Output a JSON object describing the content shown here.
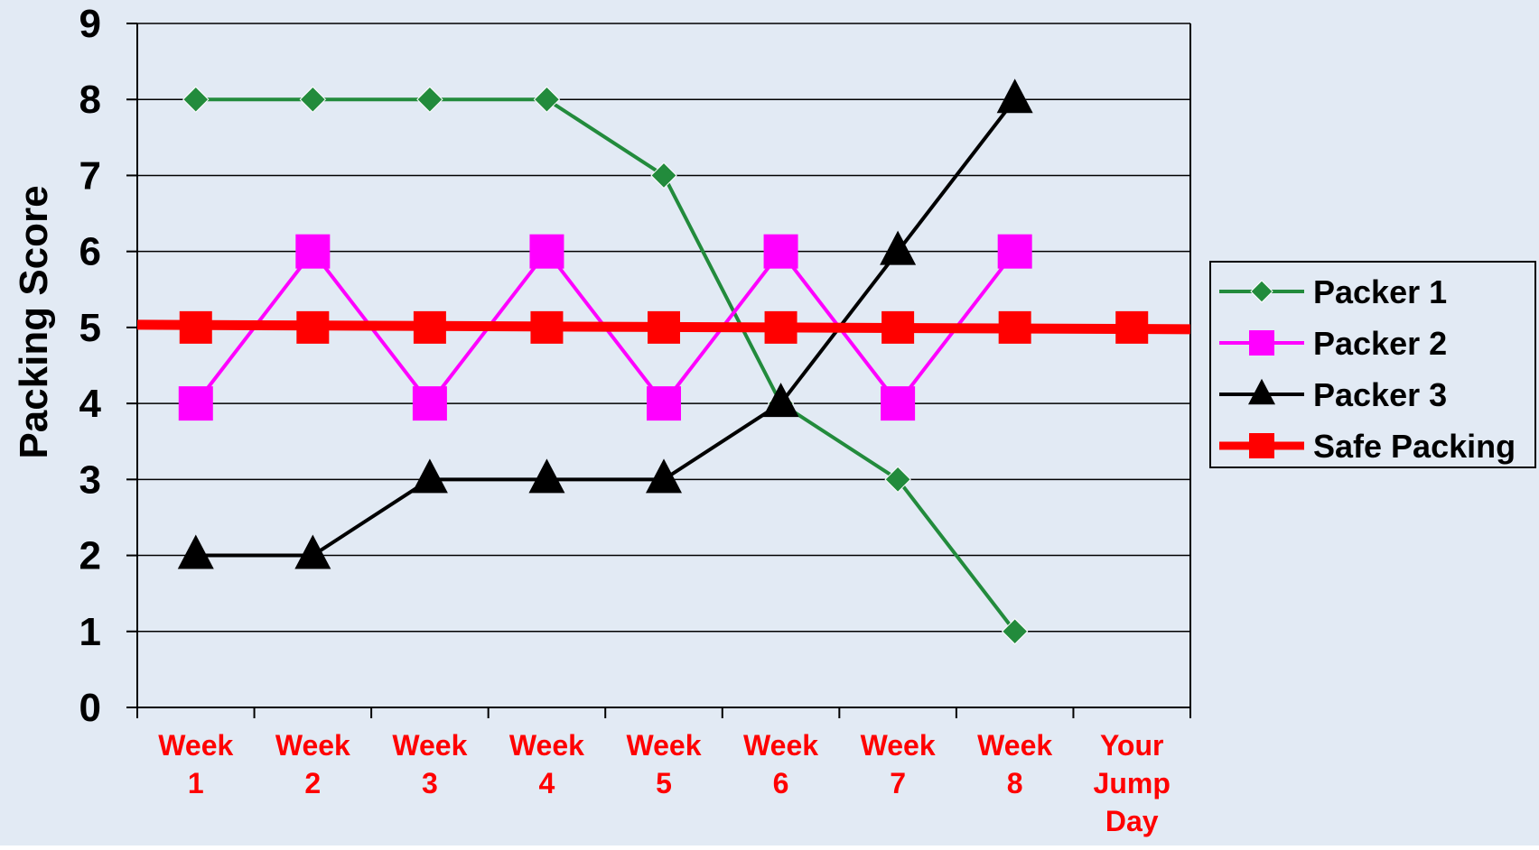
{
  "chart_data": {
    "type": "line",
    "title": "",
    "xlabel": "",
    "ylabel": "Packing Score",
    "ylim": [
      0,
      9
    ],
    "yticks": [
      0,
      1,
      2,
      3,
      4,
      5,
      6,
      7,
      8,
      9
    ],
    "grid": true,
    "legend_position": "right",
    "categories": [
      [
        "Week",
        "1"
      ],
      [
        "Week",
        "2"
      ],
      [
        "Week",
        "3"
      ],
      [
        "Week",
        "4"
      ],
      [
        "Week",
        "5"
      ],
      [
        "Week",
        "6"
      ],
      [
        "Week",
        "7"
      ],
      [
        "Week",
        "8"
      ],
      [
        "Your",
        "Jump",
        "Day"
      ]
    ],
    "series": [
      {
        "name": "Packer 1",
        "color": "#228B3C",
        "marker": "diamond",
        "values": [
          8,
          8,
          8,
          8,
          7,
          4,
          3,
          1,
          null
        ]
      },
      {
        "name": "Packer 2",
        "color": "#FF00FF",
        "marker": "square",
        "values": [
          4,
          6,
          4,
          6,
          4,
          6,
          4,
          6,
          null
        ]
      },
      {
        "name": "Packer 3",
        "color": "#000000",
        "marker": "triangle",
        "values": [
          2,
          2,
          3,
          3,
          3,
          4,
          6,
          8,
          null
        ]
      },
      {
        "name": "Safe Packing",
        "color": "#FF0000",
        "marker": "square",
        "values": [
          5,
          5,
          5,
          5,
          5,
          5,
          5,
          5,
          5
        ]
      }
    ],
    "colors": {
      "background": "#E2EAF4",
      "tick_label": "#FF0000",
      "axis_text": "#000000",
      "gridline": "#000000",
      "plot_area": "#E2EAF4",
      "legend_background": "#E2EAF4"
    }
  }
}
